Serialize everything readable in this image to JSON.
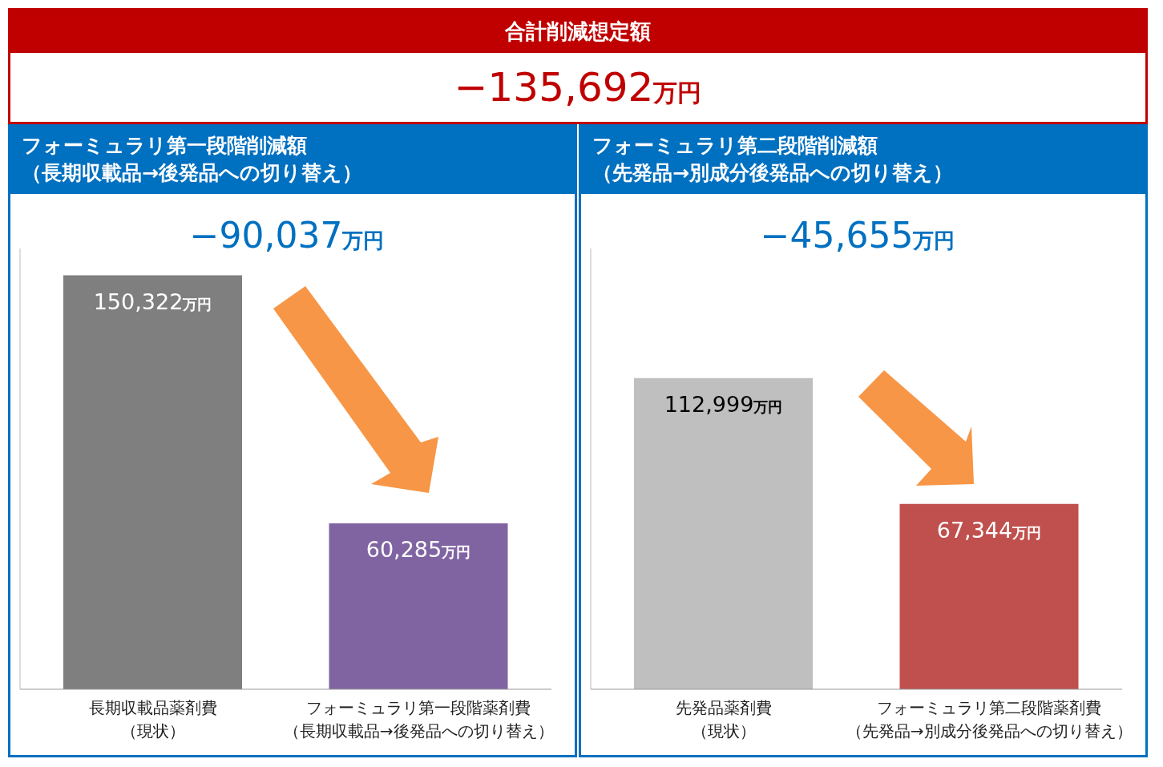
{
  "chart_data": [
    {
      "type": "other",
      "title": "合計削減想定額",
      "annotations": [
        "−135,692万円"
      ]
    },
    {
      "type": "bar",
      "title": "フォーミュラリ第一段階削減額",
      "subtitle": "（長期収載品→後発品への切り替え）",
      "annotations": [
        "−90,037万円"
      ],
      "categories": [
        "長期収載品薬剤費（現状）",
        "フォーミュラリ第一段階薬剤費（長期収載品→後発品への切り替え）"
      ],
      "values": [
        150322,
        60285
      ],
      "colors": [
        "#7f7f7f",
        "#8064a2"
      ],
      "value_labels": [
        "150,322万円",
        "60,285万円"
      ]
    },
    {
      "type": "bar",
      "title": "フォーミュラリ第二段階削減額",
      "subtitle": "（先発品→別成分後発品への切り替え）",
      "annotations": [
        "−45,655万円"
      ],
      "categories": [
        "先発品薬剤費（現状）",
        "フォーミュラリ第二段階薬剤費（先発品→別成分後発品への切り替え）"
      ],
      "values": [
        112999,
        67344
      ],
      "colors": [
        "#bfbfbf",
        "#c0504d"
      ],
      "value_labels": [
        "112,999万円",
        "67,344万円"
      ]
    }
  ]
}
